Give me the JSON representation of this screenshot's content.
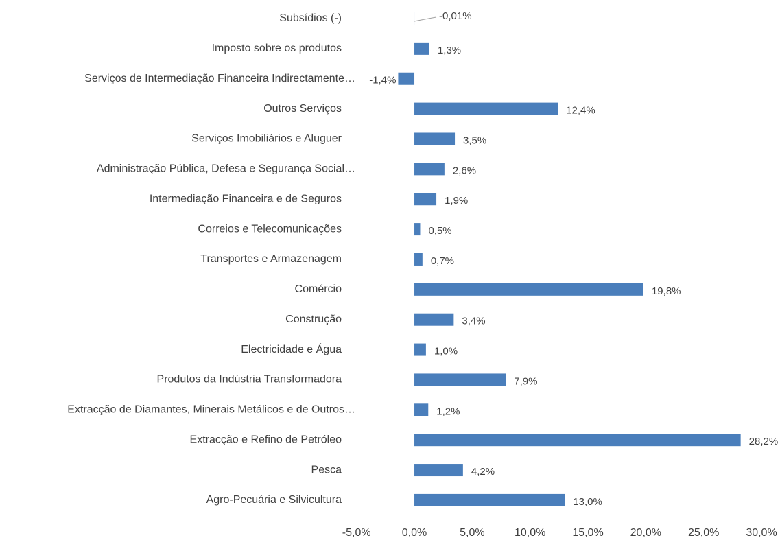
{
  "chart_data": {
    "type": "barh",
    "categories": [
      "Subsídios (-)",
      "Imposto sobre os produtos",
      "Serviços de Intermediação Financeira Indirectamente…",
      "Outros Serviços",
      "Serviços Imobiliários e Aluguer",
      "Administração Pública, Defesa e Segurança Social…",
      "Intermediação Financeira e de Seguros",
      "Correios e Telecomunicações",
      "Transportes e Armazenagem",
      "Comércio",
      "Construção",
      "Electricidade e Água",
      "Produtos da Indústria Transformadora",
      "Extracção de Diamantes, Minerais Metálicos e de Outros…",
      "Extracção e Refino de Petróleo",
      "Pesca",
      "Agro-Pecuária e Silvicultura"
    ],
    "values": [
      -0.01,
      1.3,
      -1.4,
      12.4,
      3.5,
      2.6,
      1.9,
      0.5,
      0.7,
      19.8,
      3.4,
      1.0,
      7.9,
      1.2,
      28.2,
      4.2,
      13.0
    ],
    "value_labels": [
      "-0,01%",
      "1,3%",
      "-1,4%",
      "12,4%",
      "3,5%",
      "2,6%",
      "1,9%",
      "0,5%",
      "0,7%",
      "19,8%",
      "3,4%",
      "1,0%",
      "7,9%",
      "1,2%",
      "28,2%",
      "4,2%",
      "13,0%"
    ],
    "color": "#4a7ebb",
    "xlim": [
      -5,
      30
    ],
    "xticks": [
      {
        "value": -5,
        "label": "-5,0%"
      },
      {
        "value": 0,
        "label": "0,0%"
      },
      {
        "value": 5,
        "label": "5,0%"
      },
      {
        "value": 10,
        "label": "10,0%"
      },
      {
        "value": 15,
        "label": "15,0%"
      },
      {
        "value": 20,
        "label": "20,0%"
      },
      {
        "value": 25,
        "label": "25,0%"
      },
      {
        "value": 30,
        "label": "30,0%"
      }
    ],
    "grid": false
  }
}
